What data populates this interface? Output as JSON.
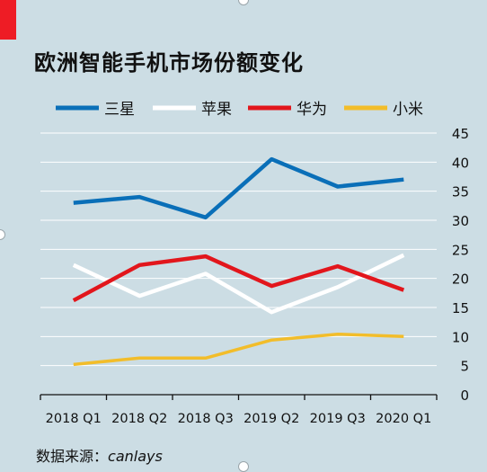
{
  "accent_color": "#ee1c25",
  "background_color": "#ccdde4",
  "source": {
    "label": "数据来源：",
    "name": "canlays"
  },
  "chart_data": {
    "type": "line",
    "title": "欧洲智能手机市场份额变化",
    "xlabel": "",
    "ylabel": "",
    "categories": [
      "2018 Q1",
      "2018 Q2",
      "2018 Q3",
      "2019 Q2",
      "2019 Q3",
      "2020 Q1"
    ],
    "ylim": [
      0,
      45
    ],
    "yticks": [
      0,
      5,
      10,
      15,
      20,
      25,
      30,
      35,
      40,
      45
    ],
    "y_axis_position": "right",
    "grid": true,
    "legend_position": "top",
    "series": [
      {
        "name": "三星",
        "color": "#0a6fb8",
        "values": [
          33,
          34,
          30.5,
          40.5,
          35.8,
          37
        ]
      },
      {
        "name": "苹果",
        "color": "#ffffff",
        "values": [
          22.3,
          17,
          20.8,
          14.2,
          18.5,
          24
        ]
      },
      {
        "name": "华为",
        "color": "#e2161c",
        "values": [
          16.2,
          22.3,
          23.8,
          18.7,
          22.1,
          18
        ]
      },
      {
        "name": "小米",
        "color": "#f2bd2a",
        "values": [
          5.2,
          6.3,
          6.3,
          9.4,
          10.4,
          10
        ]
      }
    ]
  }
}
